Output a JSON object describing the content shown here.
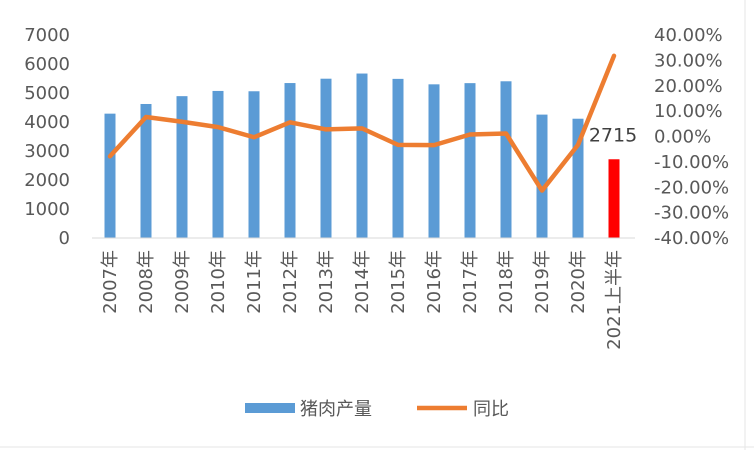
{
  "chart_data": {
    "type": "bar",
    "categories": [
      "2007年",
      "2008年",
      "2009年",
      "2010年",
      "2011年",
      "2012年",
      "2013年",
      "2014年",
      "2015年",
      "2016年",
      "2017年",
      "2018年",
      "2019年",
      "2020年",
      "2021上半年"
    ],
    "series": [
      {
        "name": "猪肉产量",
        "type": "bar",
        "axis": "left",
        "color": "#5B9BD5",
        "values": [
          4288,
          4621,
          4891,
          5071,
          5060,
          5343,
          5493,
          5671,
          5487,
          5299,
          5340,
          5404,
          4255,
          4113,
          2715
        ]
      },
      {
        "name": "同比",
        "type": "line",
        "axis": "right",
        "color": "#ED7D31",
        "values": [
          -7.8,
          7.7,
          5.8,
          3.7,
          -0.3,
          5.6,
          2.8,
          3.2,
          -3.3,
          -3.4,
          0.8,
          1.2,
          -21.3,
          -3.3,
          31.8
        ]
      }
    ],
    "highlight": {
      "index": 14,
      "color": "#FF0000",
      "label": "2715"
    },
    "y_left": {
      "min": 0,
      "max": 7000,
      "ticks": [
        "0",
        "1000",
        "2000",
        "3000",
        "4000",
        "5000",
        "6000",
        "7000"
      ]
    },
    "y_right": {
      "min": -40,
      "max": 40,
      "ticks": [
        "-40.00%",
        "-30.00%",
        "-20.00%",
        "-10.00%",
        "0.00%",
        "10.00%",
        "20.00%",
        "30.00%",
        "40.00%"
      ]
    },
    "grid": false,
    "legend": {
      "position": "bottom",
      "entries": [
        "猪肉产量",
        "同比"
      ]
    }
  }
}
